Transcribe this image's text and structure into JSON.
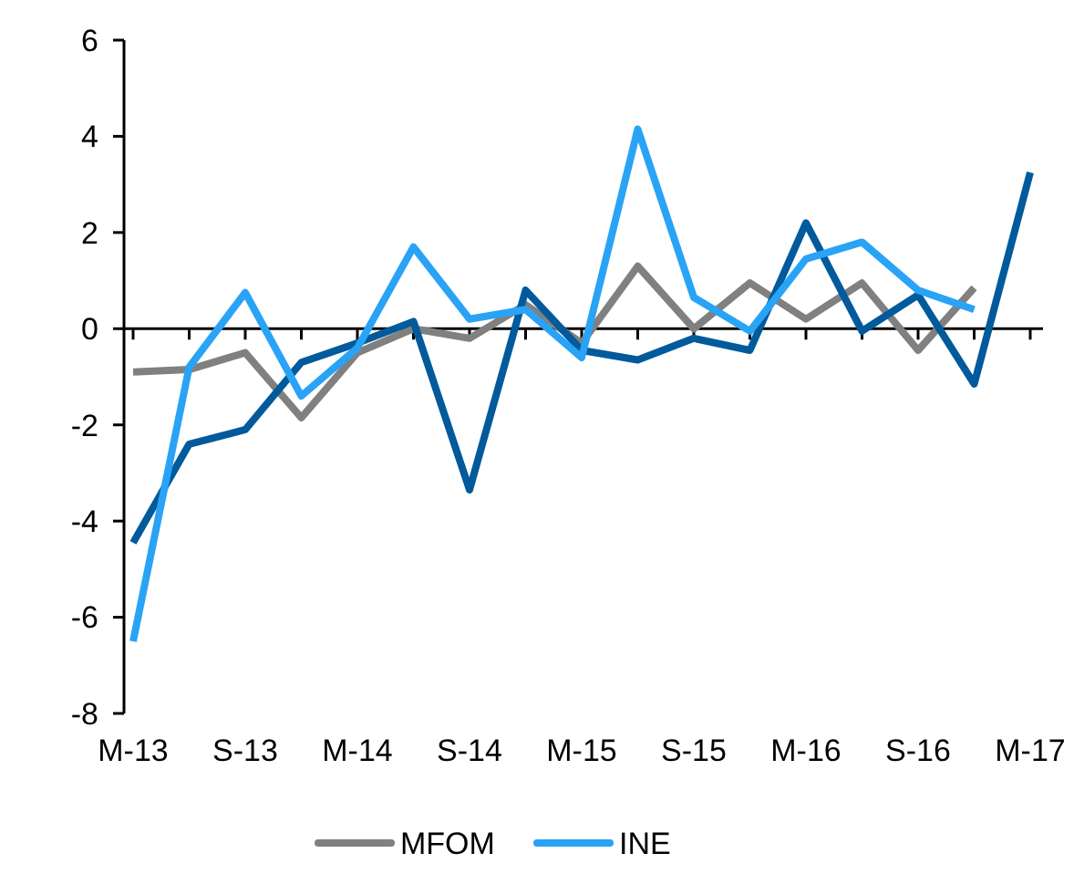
{
  "chart_data": {
    "type": "line",
    "categories": [
      "M-13",
      null,
      "S-13",
      null,
      "M-14",
      null,
      "S-14",
      null,
      "M-15",
      null,
      "S-15",
      null,
      "M-16",
      null,
      "S-16",
      null,
      "M-17"
    ],
    "series": [
      {
        "name": "MFOM",
        "color": "#808080",
        "values": [
          -0.9,
          -0.85,
          -0.5,
          -1.85,
          -0.5,
          0,
          -0.2,
          0.5,
          -0.3,
          1.3,
          0,
          0.95,
          0.2,
          0.95,
          -0.45,
          0.85,
          null
        ]
      },
      {
        "color": "#005a9c",
        "values": [
          -4.45,
          -2.4,
          -2.1,
          -0.7,
          -0.3,
          0.15,
          -3.35,
          0.8,
          -0.45,
          -0.65,
          -0.2,
          -0.45,
          2.2,
          -0.05,
          0.7,
          -1.15,
          3.25
        ]
      },
      {
        "name": "INE",
        "color": "#29a3f5",
        "values": [
          -6.5,
          -0.8,
          0.75,
          -1.4,
          -0.4,
          1.7,
          0.2,
          0.4,
          -0.6,
          4.15,
          0.65,
          -0.05,
          1.45,
          1.8,
          0.8,
          0.4,
          null
        ]
      }
    ],
    "ylim": [
      -8,
      6
    ],
    "yticks": [
      -8,
      -6,
      -4,
      -2,
      0,
      2,
      4,
      6
    ],
    "legend": "bottom",
    "marker": "none",
    "line_style": "solid"
  }
}
